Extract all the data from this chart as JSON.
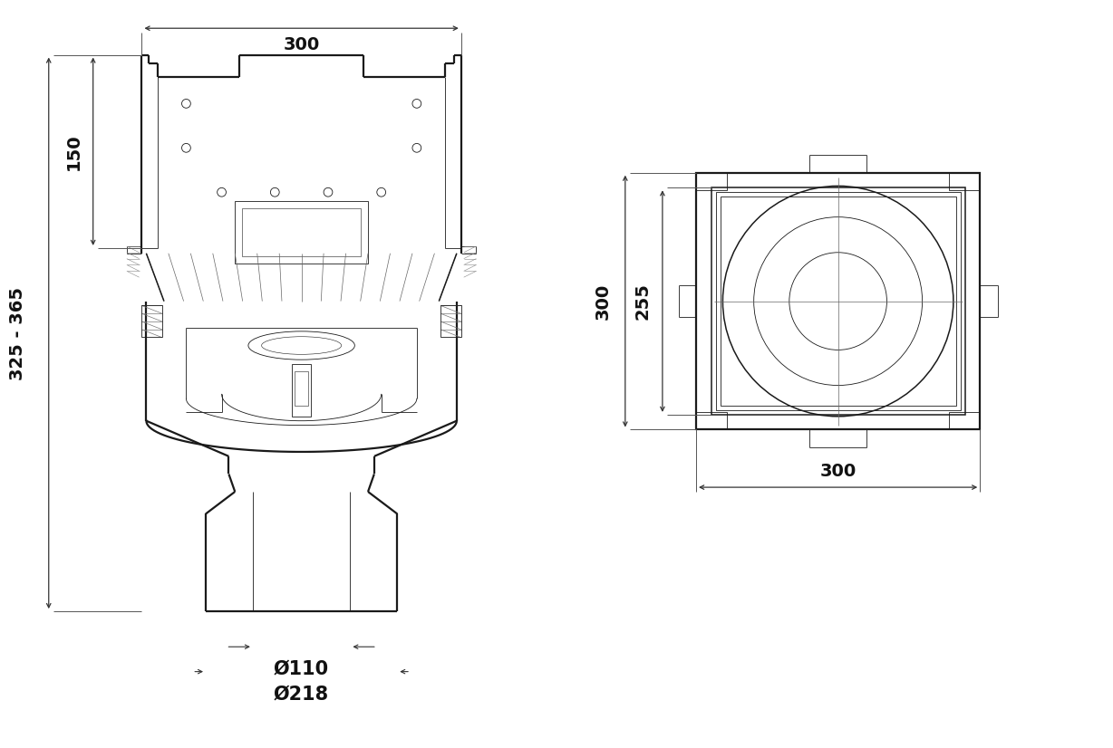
{
  "bg_color": "#ffffff",
  "line_color": "#1a1a1a",
  "dim_color": "#111111",
  "lw_thick": 1.6,
  "lw_medium": 1.1,
  "lw_thin": 0.6,
  "lw_vt": 0.4,
  "dim_fontsize": 14,
  "annotations": {
    "top_width": "300",
    "left_height_top": "150",
    "left_height_total": "325 - 365",
    "dia_110": "Ø110",
    "dia_218": "Ø218",
    "right_height_inner": "255",
    "right_height_outer": "300",
    "right_width": "300"
  }
}
